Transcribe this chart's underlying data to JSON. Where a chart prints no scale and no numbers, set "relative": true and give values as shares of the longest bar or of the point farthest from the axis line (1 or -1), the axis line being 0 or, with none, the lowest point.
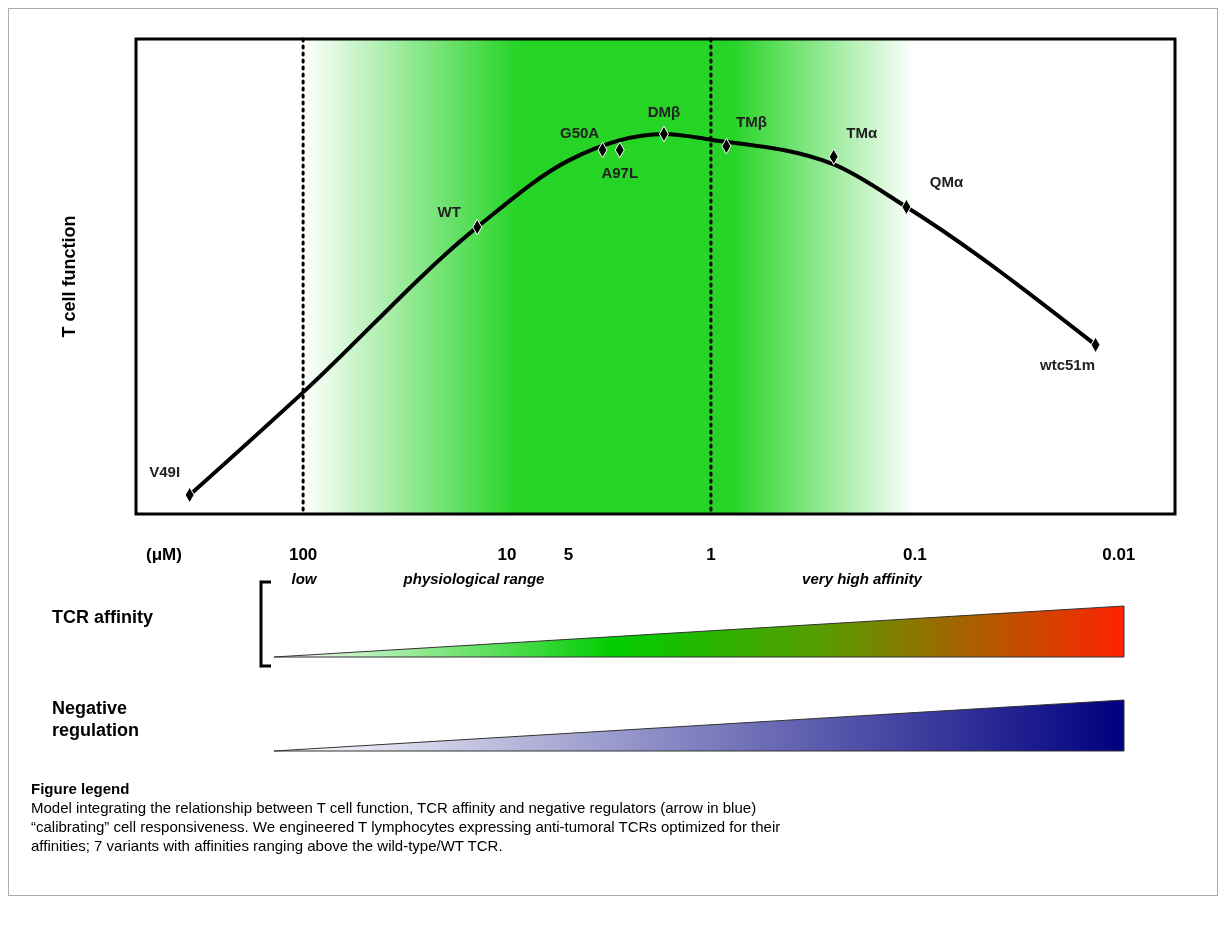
{
  "chart_data": {
    "type": "line",
    "ylabel": "T cell function",
    "xlabel": "(μM)",
    "log": "x",
    "relative": true,
    "xlim": [
      660,
      0.0053
    ],
    "xticks": [
      100,
      10,
      5,
      1,
      0.1,
      0.01
    ],
    "series": [
      {
        "color": "#000000",
        "marker": "none",
        "x": [
          360,
          100,
          14,
          5,
          1.7,
          1,
          0.25,
          0.11,
          0.013
        ],
        "values": [
          0.05,
          0.32,
          0.755,
          0.93,
          1,
          0.985,
          0.92,
          0.808,
          0.445
        ]
      },
      {
        "type": "scatter",
        "color": "#000000",
        "marker": "diamond",
        "x": [
          360,
          14,
          3.4,
          2.8,
          1.7,
          0.84,
          0.25,
          0.11,
          0.013
        ],
        "values": [
          0.05,
          0.755,
          0.958,
          0.958,
          1,
          0.968,
          0.94,
          0.808,
          0.445
        ]
      }
    ],
    "ref_lines": [
      {
        "axis": "x",
        "value": 100,
        "line_style": "dotted",
        "color": "#000000"
      },
      {
        "axis": "x",
        "value": 1,
        "line_style": "dotted",
        "color": "#000000"
      }
    ],
    "bands": [
      {
        "axis": "x",
        "from": 100,
        "to": 0.1,
        "color": "#00cc00"
      }
    ],
    "annotations": [
      {
        "text": "V49I",
        "x": 360,
        "y": 0.05
      },
      {
        "text": "WT",
        "x": 14,
        "y": 0.755
      },
      {
        "text": "G50A",
        "x": 3.4,
        "y": 0.958
      },
      {
        "text": "A97L",
        "x": 2.8,
        "y": 0.958
      },
      {
        "text": "DMβ",
        "x": 1.7,
        "y": 1
      },
      {
        "text": "TMβ",
        "x": 0.84,
        "y": 0.968
      },
      {
        "text": "TMα",
        "x": 0.25,
        "y": 0.94
      },
      {
        "text": "QMα",
        "x": 0.11,
        "y": 0.808
      },
      {
        "text": "wtc51m",
        "x": 0.013,
        "y": 0.445
      },
      "low",
      "physiological range",
      "very high affinity",
      "TCR affinity",
      "Negative regulation",
      "Figure legend",
      "Model integrating the relationship between T cell function, TCR affinity and negative regulators (arrow in blue) “calibrating” cell responsiveness. We engineered T lymphocytes expressing anti-tumoral TCRs optimized for their affinities; 7 variants with affinities ranging above the wild-type/WT TCR."
    ]
  }
}
